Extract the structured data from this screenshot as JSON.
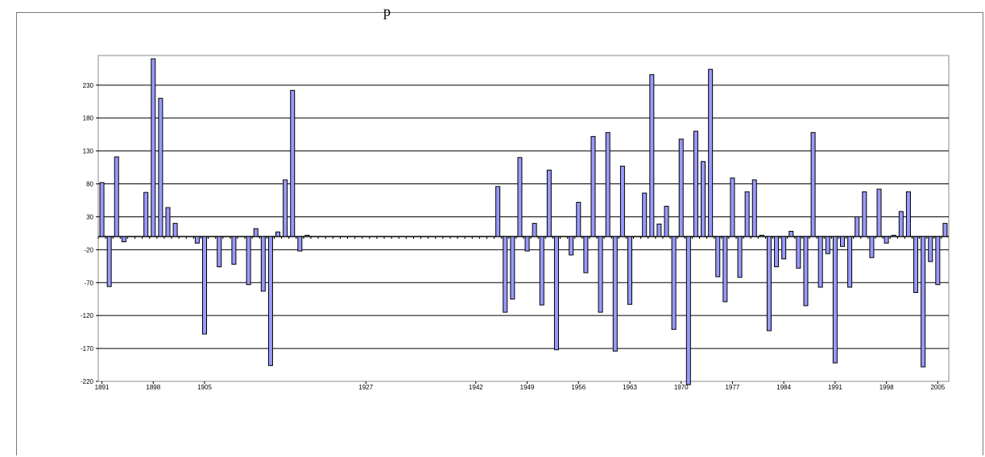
{
  "page": {
    "header_fragment": "p"
  },
  "chart_data": {
    "type": "bar",
    "title": "",
    "xlabel": "",
    "ylabel": "",
    "ylim": [
      -220,
      275
    ],
    "y_ticks": [
      -220,
      -170,
      -120,
      -70,
      -20,
      30,
      80,
      130,
      180,
      230
    ],
    "x_tick_labels": [
      "1891",
      "1898",
      "1905",
      "1927",
      "1942",
      "1949",
      "1956",
      "1963",
      "1970",
      "1977",
      "1984",
      "1991",
      "1998",
      "2005"
    ],
    "grid": true,
    "bar_color": "#9999ff",
    "background": "#ffffff",
    "categories": [
      "1891",
      "1892",
      "1893",
      "1894",
      "1895",
      "1896",
      "1897",
      "1898",
      "1899",
      "1900",
      "1901",
      "1902",
      "1903",
      "1904",
      "1905",
      "1906",
      "1907",
      "1908",
      "1909",
      "1910",
      "1911",
      "1912",
      "1913",
      "1914",
      "1915",
      "1916",
      "1917",
      "1918",
      "1919",
      "1920",
      "1921",
      "1922",
      "1923",
      "1924",
      "1925",
      "1926",
      "1927",
      "1928",
      "1929",
      "1930",
      "1931",
      "1932",
      "1933",
      "1934",
      "1935",
      "1936",
      "1937",
      "1938",
      "1939",
      "1940",
      "1941",
      "1942",
      "1943",
      "1944",
      "1945",
      "1946",
      "1947",
      "1948",
      "1949",
      "1950",
      "1951",
      "1952",
      "1953",
      "1954",
      "1955",
      "1956",
      "1957",
      "1958",
      "1959",
      "1960",
      "1961",
      "1962",
      "1963",
      "1964",
      "1965",
      "1966",
      "1967",
      "1968",
      "1969",
      "1970",
      "1971",
      "1972",
      "1973",
      "1974",
      "1975",
      "1976",
      "1977",
      "1978",
      "1979",
      "1980",
      "1981",
      "1982",
      "1983",
      "1984",
      "1985",
      "1986",
      "1987",
      "1988",
      "1989",
      "1990",
      "1991",
      "1992",
      "1993",
      "1994",
      "1995",
      "1996",
      "1997",
      "1998",
      "1999",
      "2000",
      "2001",
      "2002",
      "2003",
      "2004",
      "2005",
      "2006"
    ],
    "values": [
      82,
      -76,
      121,
      -8,
      0,
      0,
      67,
      270,
      210,
      44,
      20,
      0,
      0,
      -10,
      -148,
      0,
      -46,
      0,
      -42,
      0,
      -73,
      12,
      -83,
      -196,
      7,
      86,
      222,
      -22,
      2,
      0,
      0,
      0,
      0,
      0,
      0,
      0,
      0,
      0,
      0,
      0,
      0,
      0,
      0,
      0,
      0,
      0,
      0,
      0,
      0,
      0,
      0,
      0,
      0,
      0,
      0,
      0,
      0,
      0,
      0,
      0,
      0,
      0,
      0,
      0,
      0,
      0,
      0,
      0,
      0,
      0,
      0,
      0,
      0,
      0,
      0,
      0,
      0,
      0,
      0,
      0,
      0,
      0,
      0,
      0,
      0,
      0,
      0,
      0,
      0,
      0,
      0,
      0,
      0,
      0,
      0,
      0,
      0,
      0,
      0,
      0,
      0,
      0,
      0,
      0,
      0,
      0,
      0,
      0,
      0,
      0,
      0,
      0,
      0,
      0,
      0,
      0
    ],
    "values_recent": {
      "start_year": 1945,
      "values": [
        76,
        -115,
        -95,
        120,
        -22,
        20,
        -104,
        101,
        -172,
        0,
        -28,
        52,
        -55,
        152,
        -115,
        158,
        -174,
        107,
        -103,
        0,
        66,
        246,
        19,
        46,
        -141,
        148,
        -225,
        160,
        114,
        254,
        -61,
        -99,
        89,
        -62,
        68,
        86,
        2,
        -143,
        -46,
        -34,
        8,
        -48,
        -105,
        158,
        -77,
        -26,
        -192,
        -15,
        -77,
        30,
        68,
        -32,
        72,
        -10,
        2,
        38,
        68,
        -85,
        -198,
        -38,
        -73,
        20
      ]
    }
  }
}
